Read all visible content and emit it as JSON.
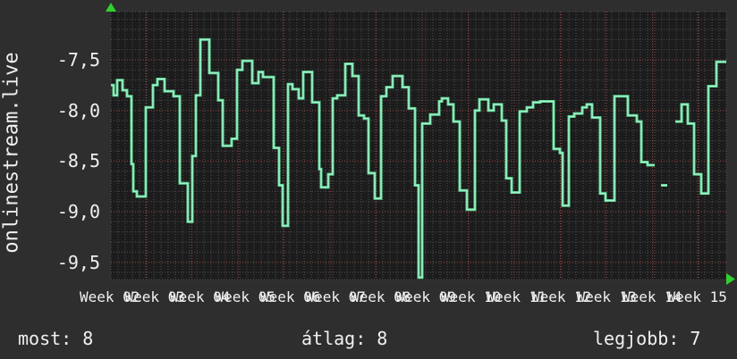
{
  "window": {
    "background": "#2e2e2e"
  },
  "sidebar_title": {
    "text": "onlinestream.live"
  },
  "stats": {
    "current": {
      "label": "most:",
      "value": "8"
    },
    "average": {
      "label": "átlag:",
      "value": "8"
    },
    "best": {
      "label": "legjobb:",
      "value": "7"
    }
  },
  "chart_data": {
    "type": "line",
    "style": "step",
    "title": "onlinestream.live",
    "grid": true,
    "legend_position": "none",
    "colors": {
      "line": "#5dd695",
      "line_core": "#aaf4cf",
      "grid_minor": "#4f4f4f",
      "grid_major": "#a04545",
      "plot_bg": "#1c1c1c",
      "outer_bg": "#2e2e2e",
      "text": "#f0f0f0",
      "arrow": "#2fd12f"
    },
    "y_axis": {
      "tick_labels": [
        "-7,5",
        "-8,0",
        "-8,5",
        "-9,0",
        "-9,5"
      ],
      "tick_values": [
        -7.5,
        -8.0,
        -8.5,
        -9.0,
        -9.5
      ],
      "minor_step": 0.1,
      "range": [
        -9.67,
        -7.02
      ]
    },
    "x_axis": {
      "unit": "week",
      "tick_labels": [
        "Week 02",
        "Week 03",
        "Week 04",
        "Week 05",
        "Week 06",
        "Week 07",
        "Week 08",
        "Week 09",
        "Week 10",
        "Week 11",
        "Week 12",
        "Week 13",
        "Week 14",
        "Week 15"
      ]
    },
    "series": [
      {
        "name": "onlinestream.live",
        "note": "steps are [x_offset_px_along_time_axis, value]; null value = data gap",
        "steps": [
          [
            0,
            -7.75
          ],
          [
            3,
            -7.85
          ],
          [
            7,
            -7.7
          ],
          [
            13,
            -7.8
          ],
          [
            18,
            -7.86
          ],
          [
            23,
            -8.53
          ],
          [
            25,
            -8.8
          ],
          [
            29,
            -8.85
          ],
          [
            39,
            -7.97
          ],
          [
            47,
            -7.75
          ],
          [
            52,
            -7.69
          ],
          [
            60,
            -7.81
          ],
          [
            70,
            -7.86
          ],
          [
            77,
            -8.72
          ],
          [
            86,
            -9.1
          ],
          [
            91,
            -8.45
          ],
          [
            95,
            -7.85
          ],
          [
            100,
            -7.3
          ],
          [
            110,
            -7.63
          ],
          [
            120,
            -7.9
          ],
          [
            125,
            -8.35
          ],
          [
            135,
            -8.28
          ],
          [
            141,
            -7.6
          ],
          [
            147,
            -7.51
          ],
          [
            158,
            -7.73
          ],
          [
            165,
            -7.62
          ],
          [
            170,
            -7.67
          ],
          [
            182,
            -8.37
          ],
          [
            188,
            -8.74
          ],
          [
            192,
            -9.14
          ],
          [
            198,
            -7.74
          ],
          [
            203,
            -7.79
          ],
          [
            210,
            -7.88
          ],
          [
            215,
            -7.62
          ],
          [
            225,
            -7.92
          ],
          [
            233,
            -8.58
          ],
          [
            235,
            -8.76
          ],
          [
            243,
            -8.63
          ],
          [
            248,
            -7.88
          ],
          [
            253,
            -7.85
          ],
          [
            262,
            -7.54
          ],
          [
            270,
            -7.66
          ],
          [
            277,
            -8.05
          ],
          [
            283,
            -8.08
          ],
          [
            288,
            -8.62
          ],
          [
            295,
            -8.87
          ],
          [
            302,
            -7.86
          ],
          [
            308,
            -7.77
          ],
          [
            315,
            -7.66
          ],
          [
            326,
            -7.77
          ],
          [
            333,
            -7.98
          ],
          [
            340,
            -8.74
          ],
          [
            344,
            -9.65
          ],
          [
            348,
            -8.13
          ],
          [
            357,
            -8.04
          ],
          [
            367,
            -7.91
          ],
          [
            370,
            -7.88
          ],
          [
            377,
            -7.94
          ],
          [
            383,
            -8.11
          ],
          [
            390,
            -8.79
          ],
          [
            398,
            -8.98
          ],
          [
            407,
            -8.0
          ],
          [
            412,
            -7.89
          ],
          [
            422,
            -8.0
          ],
          [
            428,
            -7.94
          ],
          [
            437,
            -8.1
          ],
          [
            442,
            -8.67
          ],
          [
            448,
            -8.81
          ],
          [
            457,
            -8.01
          ],
          [
            465,
            -7.97
          ],
          [
            472,
            -7.92
          ],
          [
            480,
            -7.91
          ],
          [
            495,
            -8.38
          ],
          [
            502,
            -8.42
          ],
          [
            505,
            -8.94
          ],
          [
            512,
            -8.06
          ],
          [
            518,
            -8.03
          ],
          [
            527,
            -7.97
          ],
          [
            532,
            -7.94
          ],
          [
            538,
            -8.07
          ],
          [
            547,
            -8.82
          ],
          [
            553,
            -8.89
          ],
          [
            563,
            -7.86
          ],
          [
            578,
            -8.05
          ],
          [
            588,
            -8.11
          ],
          [
            593,
            -8.51
          ],
          [
            600,
            -8.54
          ],
          [
            608,
            null
          ],
          [
            615,
            -8.74
          ],
          [
            622,
            null
          ],
          [
            631,
            -8.11
          ],
          [
            638,
            -7.94
          ],
          [
            645,
            -8.13
          ],
          [
            652,
            -8.63
          ],
          [
            660,
            -8.82
          ],
          [
            668,
            -7.76
          ],
          [
            677,
            -7.52
          ],
          [
            688,
            null
          ]
        ]
      }
    ]
  }
}
